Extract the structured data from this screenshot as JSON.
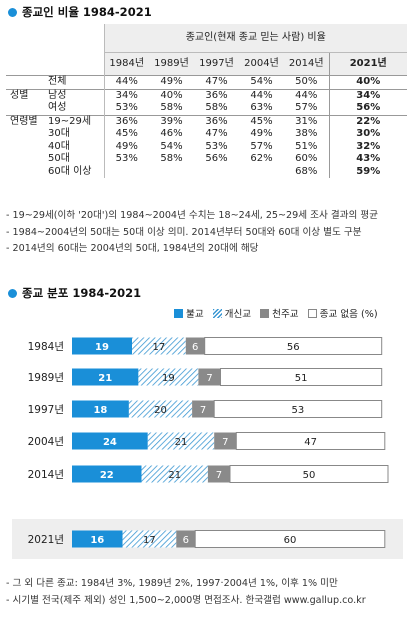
{
  "section1": {
    "title": "종교인 비율 1984-2021"
  },
  "section2": {
    "title": "종교 분포 1984-2021"
  },
  "rate_table": {
    "group_header": "종교인(현재 종교 믿는 사람) 비율",
    "years": [
      "1984년",
      "1989년",
      "1997년",
      "2004년",
      "2014년",
      "2021년"
    ],
    "rows": [
      {
        "g": "",
        "l": "전체",
        "v": [
          "44%",
          "49%",
          "47%",
          "54%",
          "50%",
          "40%"
        ]
      },
      {
        "g": "성별",
        "l": "남성",
        "v": [
          "34%",
          "40%",
          "36%",
          "44%",
          "44%",
          "34%"
        ]
      },
      {
        "g": "",
        "l": "여성",
        "v": [
          "53%",
          "58%",
          "58%",
          "63%",
          "57%",
          "56%"
        ]
      },
      {
        "g": "연령별",
        "l": "19~29세",
        "v": [
          "36%",
          "39%",
          "36%",
          "45%",
          "31%",
          "22%"
        ]
      },
      {
        "g": "",
        "l": "30대",
        "v": [
          "45%",
          "46%",
          "47%",
          "49%",
          "38%",
          "30%"
        ]
      },
      {
        "g": "",
        "l": "40대",
        "v": [
          "49%",
          "54%",
          "53%",
          "57%",
          "51%",
          "32%"
        ]
      },
      {
        "g": "",
        "l": "50대",
        "v": [
          "53%",
          "58%",
          "56%",
          "62%",
          "60%",
          "43%"
        ]
      },
      {
        "g": "",
        "l": "60대 이상",
        "v": [
          "",
          "",
          "",
          "",
          "68%",
          "59%"
        ]
      }
    ]
  },
  "notes1": [
    "- 19~29세(이하 '20대')의 1984~2004년 수치는 18~24세, 25~29세 조사 결과의 평균",
    "- 1984~2004년의 50대는 50대 이상 의미. 2014년부터 50대와 60대 이상 별도 구분",
    "- 2014년의 60대는 2004년의 50대, 1984년의 20대에 해당"
  ],
  "legend": [
    "불교",
    "개신교",
    "천주교",
    "종교 없음 (%)"
  ],
  "colors": {
    "buddhism": "#1a8fd8",
    "protestant": "#3a97d3",
    "catholic": "#8a8a8a",
    "none": "#ffffff",
    "shade": "#eeeeee"
  },
  "chart_data": {
    "type": "bar",
    "stacked": true,
    "orientation": "horizontal",
    "categories": [
      "1984년",
      "1989년",
      "1997년",
      "2004년",
      "2014년",
      "2021년"
    ],
    "series": [
      {
        "name": "불교",
        "values": [
          19,
          21,
          18,
          24,
          22,
          16
        ]
      },
      {
        "name": "개신교",
        "values": [
          17,
          19,
          20,
          21,
          21,
          17
        ]
      },
      {
        "name": "천주교",
        "values": [
          6,
          7,
          7,
          7,
          7,
          6
        ]
      },
      {
        "name": "종교 없음 (%)",
        "values": [
          56,
          51,
          53,
          47,
          50,
          60
        ]
      }
    ],
    "unit": "%"
  },
  "notes2": [
    "- 그 외 다른 종교: 1984년 3%, 1989년 2%, 1997·2004년 1%, 이후 1% 미만",
    "- 시기별 전국(제주 제외) 성인 1,500~2,000명 면접조사. 한국갤럽 www.gallup.co.kr"
  ]
}
